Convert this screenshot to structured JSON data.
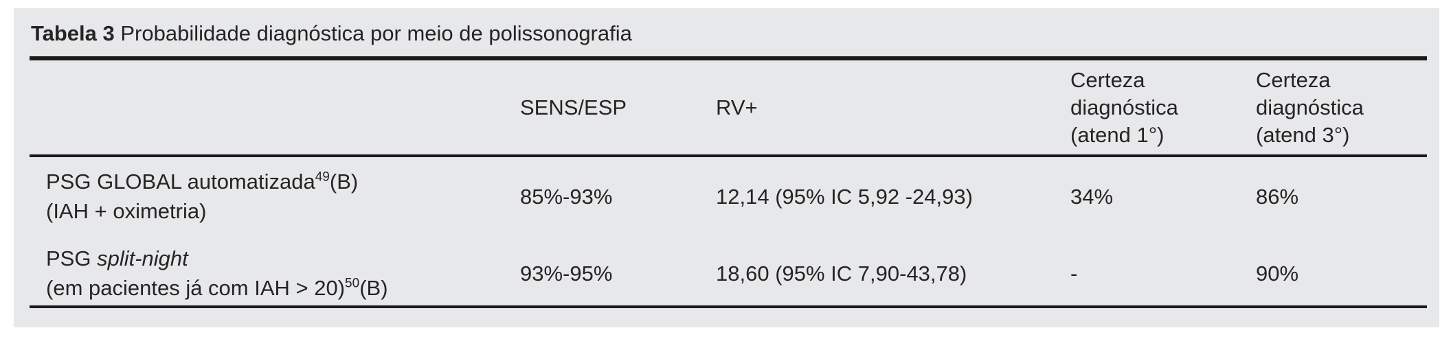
{
  "page": {
    "background": "#ffffff",
    "panel_background": "#e7e8e9",
    "text_color": "#272325",
    "rule_color": "#1b191a"
  },
  "caption": {
    "label": "Tabela 3",
    "text": " Probabilidade diagnóstica por meio de polissonografia"
  },
  "table": {
    "headers": {
      "col1": "",
      "col2": "SENS/ESP",
      "col3": "RV+",
      "col4_lines": [
        "Certeza",
        "diagnóstica",
        "(atend 1°)"
      ],
      "col5_lines": [
        "Certeza",
        "diagnóstica",
        "(atend 3°)"
      ]
    },
    "rows": [
      {
        "label": {
          "line1_text": "PSG GLOBAL automatizada",
          "line1_sup": "49",
          "line1_suffix": "(B)",
          "line2_text": "(IAH + oximetria)"
        },
        "sens_esp": "85%-93%",
        "rv": "12,14 (95% IC 5,92 -24,93)",
        "certeza1": "34%",
        "certeza3": "86%"
      },
      {
        "label": {
          "line1_text": "PSG ",
          "line1_italic": "split-night",
          "line2_text": "(em pacientes já com IAH > 20)",
          "line2_sup": "50",
          "line2_suffix": "(B)"
        },
        "sens_esp": "93%-95%",
        "rv": "18,60 (95% IC 7,90-43,78)",
        "certeza1": "-",
        "certeza3": "90%"
      }
    ]
  }
}
